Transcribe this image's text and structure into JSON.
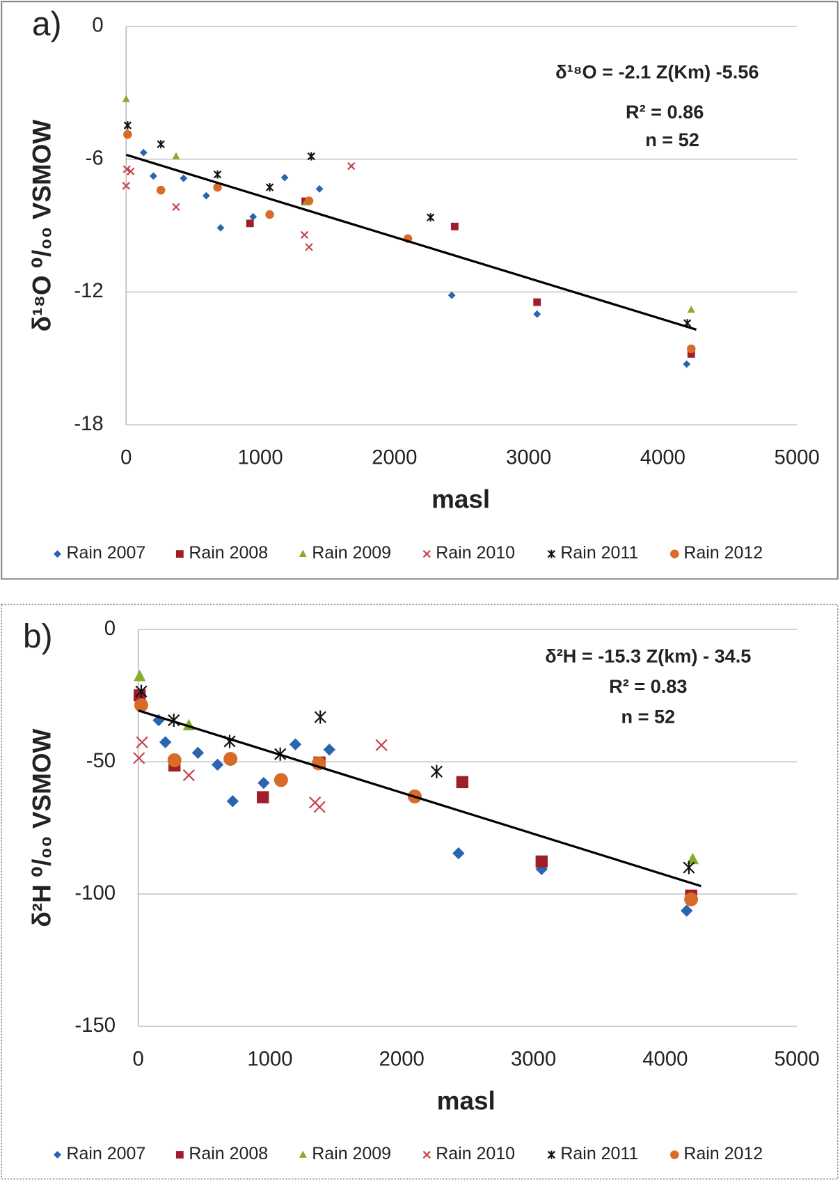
{
  "chart_data": [
    {
      "type": "scatter",
      "panel_label": "a)",
      "x_label": "masl",
      "y_label": "δ¹⁸O ⁰/₀₀ VSMOW",
      "annotations": [
        "δ¹⁸O = -2.1 Z(Km) -5.56",
        "R² = 0.86",
        "n = 52"
      ],
      "xlim": [
        0,
        5000
      ],
      "xticks": [
        0,
        1000,
        2000,
        3000,
        4000,
        5000
      ],
      "ylim": [
        -18,
        0
      ],
      "yticks": [
        -18,
        -12,
        -6,
        0
      ],
      "grid": true,
      "legend": "bottom",
      "trendline": {
        "color": "#000000",
        "x": [
          0,
          4250
        ],
        "y": [
          -5.8,
          -13.7
        ]
      },
      "series": [
        {
          "name": "Rain 2007",
          "color": "#2a64b0",
          "marker": "diamond",
          "x": [
            130,
            203,
            428,
            597,
            704,
            946,
            1182,
            1441,
            2427,
            3063,
            4178
          ],
          "values": [
            -5.7,
            -6.76,
            -6.86,
            -7.65,
            -9.1,
            -8.6,
            -6.83,
            -7.34,
            -12.15,
            -13.0,
            -15.26
          ]
        },
        {
          "name": "Rain 2008",
          "color": "#9e1f2a",
          "marker": "square",
          "x": [
            923,
            1335,
            2449,
            3063,
            4212
          ],
          "values": [
            -8.9,
            -7.9,
            -9.04,
            -12.46,
            -14.8
          ]
        },
        {
          "name": "Rain 2009",
          "color": "#86ac2a",
          "marker": "triangle",
          "x": [
            0,
            372,
            1340,
            4212
          ],
          "values": [
            -3.28,
            -5.87,
            -7.95,
            -12.8
          ]
        },
        {
          "name": "Rain 2010",
          "color": "#c8404a",
          "marker": "x",
          "x": [
            0,
            5,
            34,
            372,
            1329,
            1363,
            1678
          ],
          "values": [
            -7.2,
            -6.45,
            -6.55,
            -8.16,
            -9.42,
            -9.97,
            -6.31
          ]
        },
        {
          "name": "Rain 2011",
          "color": "#111111",
          "marker": "star",
          "x": [
            11,
            259,
            681,
            1070,
            1380,
            2269,
            4183
          ],
          "values": [
            -4.47,
            -5.32,
            -6.69,
            -7.27,
            -5.87,
            -8.63,
            -13.41
          ]
        },
        {
          "name": "Rain 2012",
          "color": "#d76b27",
          "marker": "circle",
          "x": [
            11,
            259,
            681,
            1070,
            1363,
            2100,
            4212
          ],
          "values": [
            -4.88,
            -7.4,
            -7.27,
            -8.5,
            -7.88,
            -9.59,
            -14.57
          ]
        }
      ]
    },
    {
      "type": "scatter",
      "panel_label": "b)",
      "x_label": "masl",
      "y_label": "δ²H ⁰/₀₀ VSMOW",
      "annotations": [
        "δ²H = -15.3 Z(km) - 34.5",
        "R² = 0.83",
        "n = 52"
      ],
      "xlim": [
        0,
        5000
      ],
      "xticks": [
        0,
        1000,
        2000,
        3000,
        4000,
        5000
      ],
      "ylim": [
        -150,
        0
      ],
      "yticks": [
        -150,
        -100,
        -50,
        0
      ],
      "grid": true,
      "legend": "bottom",
      "trendline": {
        "color": "#000000",
        "x": [
          0,
          4272
        ],
        "y": [
          -30.6,
          -97
        ]
      },
      "series": [
        {
          "name": "Rain 2007",
          "color": "#2a64b0",
          "marker": "diamond",
          "x": [
            155,
            206,
            453,
            602,
            717,
            952,
            1193,
            1451,
            2431,
            3062,
            4163
          ],
          "values": [
            -34.3,
            -42.6,
            -46.6,
            -51.1,
            -64.9,
            -58,
            -43.4,
            -45.4,
            -84.6,
            -90.6,
            -106.3
          ]
        },
        {
          "name": "Rain 2008",
          "color": "#9e1f2a",
          "marker": "square",
          "x": [
            11,
            275,
            946,
            1376,
            2460,
            3062,
            4197
          ],
          "values": [
            -24.9,
            -51.4,
            -63.4,
            -50.3,
            -57.7,
            -87.7,
            -100.6
          ]
        },
        {
          "name": "Rain 2009",
          "color": "#86ac2a",
          "marker": "triangle",
          "x": [
            11,
            384,
            4209
          ],
          "values": [
            -17.7,
            -36.3,
            -86.9
          ]
        },
        {
          "name": "Rain 2010",
          "color": "#c8404a",
          "marker": "x",
          "x": [
            6,
            29,
            384,
            1342,
            1376,
            1846
          ],
          "values": [
            -48.6,
            -42.6,
            -55.1,
            -65.4,
            -67.1,
            -43.7
          ]
        },
        {
          "name": "Rain 2011",
          "color": "#111111",
          "marker": "star",
          "x": [
            23,
            270,
            694,
            1078,
            1382,
            2265,
            4180
          ],
          "values": [
            -23.4,
            -34.3,
            -42.3,
            -47.1,
            -33.1,
            -53.7,
            -90
          ]
        },
        {
          "name": "Rain 2012",
          "color": "#d76b27",
          "marker": "circle",
          "x": [
            23,
            275,
            700,
            1084,
            1370,
            2099,
            4197
          ],
          "values": [
            -28.6,
            -49.4,
            -48.9,
            -56.9,
            -50.6,
            -63.1,
            -102
          ]
        }
      ]
    }
  ]
}
